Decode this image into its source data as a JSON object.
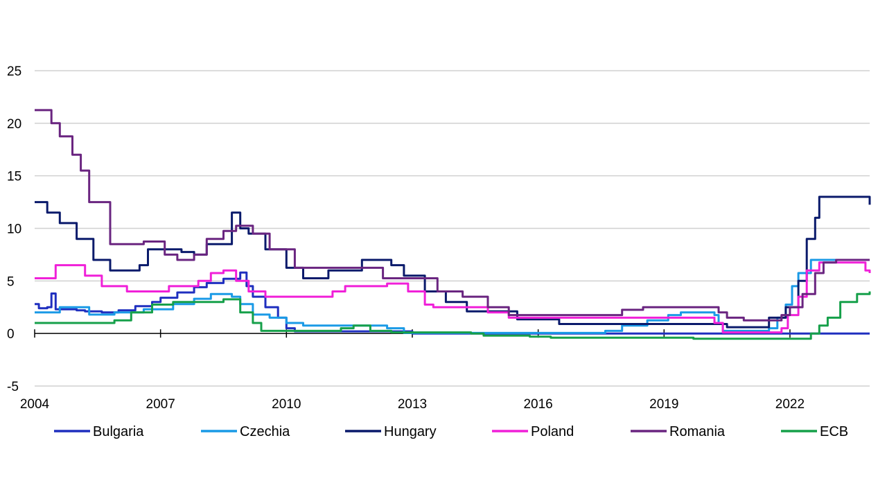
{
  "chart_data": {
    "type": "line",
    "title": "",
    "xlabel": "",
    "ylabel": "",
    "ylim": [
      -5,
      25
    ],
    "xlim": [
      2004,
      2023.9
    ],
    "yticks": [
      -5,
      0,
      5,
      10,
      15,
      20,
      25
    ],
    "xticks": [
      2004,
      2007,
      2010,
      2013,
      2016,
      2019,
      2022
    ],
    "grid": "horizontal",
    "legend_position": "bottom",
    "series": [
      {
        "name": "Bulgaria",
        "color": "#1f2fbf",
        "step": true,
        "points": [
          [
            2004,
            2.8
          ],
          [
            2004.1,
            2.4
          ],
          [
            2004.3,
            2.5
          ],
          [
            2004.4,
            3.8
          ],
          [
            2004.5,
            2.3
          ],
          [
            2005,
            2.2
          ],
          [
            2005.2,
            2.1
          ],
          [
            2005.6,
            2.0
          ],
          [
            2006,
            2.2
          ],
          [
            2006.4,
            2.6
          ],
          [
            2006.8,
            3.0
          ],
          [
            2007,
            3.4
          ],
          [
            2007.4,
            3.9
          ],
          [
            2007.8,
            4.4
          ],
          [
            2008.1,
            4.8
          ],
          [
            2008.5,
            5.2
          ],
          [
            2008.9,
            5.8
          ],
          [
            2009.05,
            4.5
          ],
          [
            2009.2,
            3.5
          ],
          [
            2009.5,
            2.5
          ],
          [
            2009.8,
            1.5
          ],
          [
            2010,
            0.5
          ],
          [
            2010.2,
            0.2
          ],
          [
            2011,
            0.2
          ],
          [
            2013,
            0.0
          ],
          [
            2023.8,
            0.0
          ],
          [
            2023.9,
            0.0
          ]
        ]
      },
      {
        "name": "Czechia",
        "color": "#1a9ae6",
        "step": true,
        "points": [
          [
            2004,
            2.0
          ],
          [
            2004.6,
            2.5
          ],
          [
            2005.3,
            1.8
          ],
          [
            2005.9,
            2.0
          ],
          [
            2006.6,
            2.3
          ],
          [
            2007.3,
            2.8
          ],
          [
            2007.8,
            3.3
          ],
          [
            2008.2,
            3.75
          ],
          [
            2008.7,
            3.5
          ],
          [
            2008.9,
            2.8
          ],
          [
            2009.2,
            1.8
          ],
          [
            2009.6,
            1.5
          ],
          [
            2010,
            1.0
          ],
          [
            2010.4,
            0.75
          ],
          [
            2012.4,
            0.5
          ],
          [
            2012.8,
            0.05
          ],
          [
            2017.6,
            0.25
          ],
          [
            2018,
            0.75
          ],
          [
            2018.6,
            1.25
          ],
          [
            2019.1,
            1.75
          ],
          [
            2019.4,
            2.0
          ],
          [
            2020.2,
            1.75
          ],
          [
            2020.3,
            1.0
          ],
          [
            2020.4,
            0.25
          ],
          [
            2021.5,
            0.5
          ],
          [
            2021.7,
            1.5
          ],
          [
            2021.9,
            2.75
          ],
          [
            2022.05,
            4.5
          ],
          [
            2022.2,
            5.75
          ],
          [
            2022.5,
            7.0
          ],
          [
            2023.9,
            7.0
          ]
        ]
      },
      {
        "name": "Hungary",
        "color": "#0a1a6b",
        "step": true,
        "points": [
          [
            2004,
            12.5
          ],
          [
            2004.3,
            11.5
          ],
          [
            2004.6,
            10.5
          ],
          [
            2005,
            9.0
          ],
          [
            2005.4,
            7.0
          ],
          [
            2005.8,
            6.0
          ],
          [
            2006.5,
            6.5
          ],
          [
            2006.7,
            8.0
          ],
          [
            2007.5,
            7.75
          ],
          [
            2007.8,
            7.5
          ],
          [
            2008.1,
            8.5
          ],
          [
            2008.7,
            11.5
          ],
          [
            2008.9,
            10.0
          ],
          [
            2009.1,
            9.5
          ],
          [
            2009.5,
            8.0
          ],
          [
            2010,
            6.25
          ],
          [
            2010.4,
            5.25
          ],
          [
            2011,
            6.0
          ],
          [
            2011.8,
            7.0
          ],
          [
            2012.5,
            6.5
          ],
          [
            2012.8,
            5.5
          ],
          [
            2013.3,
            4.0
          ],
          [
            2013.8,
            3.0
          ],
          [
            2014.3,
            2.1
          ],
          [
            2015.5,
            1.35
          ],
          [
            2016.5,
            0.9
          ],
          [
            2017.5,
            0.9
          ],
          [
            2019,
            0.9
          ],
          [
            2020.5,
            0.6
          ],
          [
            2021.5,
            1.5
          ],
          [
            2021.9,
            2.5
          ],
          [
            2022.2,
            5.0
          ],
          [
            2022.4,
            9.0
          ],
          [
            2022.6,
            11.0
          ],
          [
            2022.7,
            13.0
          ],
          [
            2023.8,
            13.0
          ],
          [
            2023.9,
            12.25
          ]
        ]
      },
      {
        "name": "Poland",
        "color": "#f020d8",
        "step": true,
        "points": [
          [
            2004,
            5.25
          ],
          [
            2004.5,
            6.5
          ],
          [
            2005.2,
            5.5
          ],
          [
            2005.6,
            4.5
          ],
          [
            2006.2,
            4.0
          ],
          [
            2007.2,
            4.5
          ],
          [
            2007.9,
            5.0
          ],
          [
            2008.2,
            5.75
          ],
          [
            2008.5,
            6.0
          ],
          [
            2008.8,
            5.0
          ],
          [
            2009.1,
            4.0
          ],
          [
            2009.5,
            3.5
          ],
          [
            2011.1,
            4.0
          ],
          [
            2011.4,
            4.5
          ],
          [
            2012.4,
            4.75
          ],
          [
            2012.9,
            4.0
          ],
          [
            2013.3,
            2.75
          ],
          [
            2013.5,
            2.5
          ],
          [
            2014.8,
            2.0
          ],
          [
            2015.3,
            1.5
          ],
          [
            2020.2,
            1.0
          ],
          [
            2020.4,
            0.1
          ],
          [
            2021.8,
            0.5
          ],
          [
            2021.95,
            1.75
          ],
          [
            2022.2,
            3.5
          ],
          [
            2022.4,
            6.0
          ],
          [
            2022.7,
            6.75
          ],
          [
            2023.7,
            6.75
          ],
          [
            2023.8,
            6.0
          ],
          [
            2023.9,
            5.75
          ]
        ]
      },
      {
        "name": "Romania",
        "color": "#6a2580",
        "step": true,
        "points": [
          [
            2004,
            21.25
          ],
          [
            2004.4,
            20.0
          ],
          [
            2004.6,
            18.75
          ],
          [
            2004.9,
            17.0
          ],
          [
            2005.1,
            15.5
          ],
          [
            2005.3,
            12.5
          ],
          [
            2005.8,
            8.5
          ],
          [
            2006.2,
            8.5
          ],
          [
            2006.6,
            8.75
          ],
          [
            2007.1,
            7.5
          ],
          [
            2007.4,
            7.0
          ],
          [
            2007.8,
            7.5
          ],
          [
            2008.1,
            9.0
          ],
          [
            2008.5,
            9.75
          ],
          [
            2008.8,
            10.25
          ],
          [
            2009.2,
            9.5
          ],
          [
            2009.6,
            8.0
          ],
          [
            2010.2,
            6.25
          ],
          [
            2012.3,
            5.25
          ],
          [
            2013.6,
            4.0
          ],
          [
            2014.2,
            3.5
          ],
          [
            2014.8,
            2.5
          ],
          [
            2015.3,
            1.75
          ],
          [
            2018.0,
            2.25
          ],
          [
            2018.5,
            2.5
          ],
          [
            2020.3,
            2.0
          ],
          [
            2020.5,
            1.5
          ],
          [
            2020.9,
            1.25
          ],
          [
            2021.8,
            1.75
          ],
          [
            2022.0,
            2.5
          ],
          [
            2022.3,
            3.75
          ],
          [
            2022.6,
            5.75
          ],
          [
            2022.8,
            6.75
          ],
          [
            2023.1,
            7.0
          ],
          [
            2023.9,
            7.0
          ]
        ]
      },
      {
        "name": "ECB",
        "color": "#16a04a",
        "step": true,
        "points": [
          [
            2004,
            1.0
          ],
          [
            2005.9,
            1.25
          ],
          [
            2006.3,
            2.0
          ],
          [
            2006.8,
            2.75
          ],
          [
            2007.3,
            3.0
          ],
          [
            2008.5,
            3.25
          ],
          [
            2008.9,
            2.0
          ],
          [
            2009.2,
            1.0
          ],
          [
            2009.4,
            0.25
          ],
          [
            2011.3,
            0.5
          ],
          [
            2011.6,
            0.75
          ],
          [
            2012.0,
            0.25
          ],
          [
            2012.5,
            0.1
          ],
          [
            2014.4,
            0.0
          ],
          [
            2014.7,
            -0.2
          ],
          [
            2015.8,
            -0.3
          ],
          [
            2016.3,
            -0.4
          ],
          [
            2019.7,
            -0.5
          ],
          [
            2022.5,
            0.0
          ],
          [
            2022.7,
            0.75
          ],
          [
            2022.9,
            1.5
          ],
          [
            2023.2,
            3.0
          ],
          [
            2023.6,
            3.75
          ],
          [
            2023.9,
            4.0
          ]
        ]
      }
    ]
  },
  "legend": [
    {
      "label": "Bulgaria",
      "color": "#1f2fbf"
    },
    {
      "label": "Czechia",
      "color": "#1a9ae6"
    },
    {
      "label": "Hungary",
      "color": "#0a1a6b"
    },
    {
      "label": "Poland",
      "color": "#f020d8"
    },
    {
      "label": "Romania",
      "color": "#6a2580"
    },
    {
      "label": "ECB",
      "color": "#16a04a"
    }
  ]
}
